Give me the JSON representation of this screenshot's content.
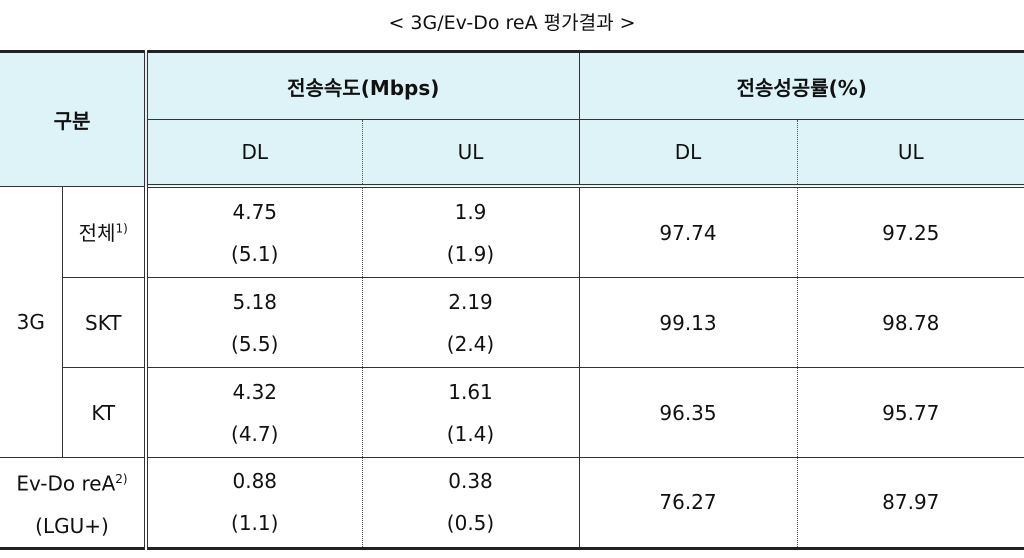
{
  "title": "< 3G/Ev-Do reA 평가결과 >",
  "table": {
    "header": {
      "group": "구분",
      "speed": "전송속도(Mbps)",
      "success": "전송성공률(%)",
      "sub": [
        "DL",
        "UL",
        "DL",
        "UL"
      ]
    },
    "rows": [
      {
        "group": "3G",
        "name": "전체",
        "note": "1)",
        "speed_dl": [
          "4.75",
          "(5.1)"
        ],
        "speed_ul": [
          "1.9",
          "(1.9)"
        ],
        "success_dl": "97.74",
        "success_ul": "97.25"
      },
      {
        "name": "SKT",
        "speed_dl": [
          "5.18",
          "(5.5)"
        ],
        "speed_ul": [
          "2.19",
          "(2.4)"
        ],
        "success_dl": "99.13",
        "success_ul": "98.78"
      },
      {
        "name": "KT",
        "speed_dl": [
          "4.32",
          "(4.7)"
        ],
        "speed_ul": [
          "1.61",
          "(1.4)"
        ],
        "success_dl": "96.35",
        "success_ul": "95.77"
      },
      {
        "name": "Ev-Do reA",
        "note": "2)",
        "carrier": "(LGU+)",
        "speed_dl": [
          "0.88",
          "(1.1)"
        ],
        "speed_ul": [
          "0.38",
          "(0.5)"
        ],
        "success_dl": "76.27",
        "success_ul": "87.97"
      }
    ]
  }
}
